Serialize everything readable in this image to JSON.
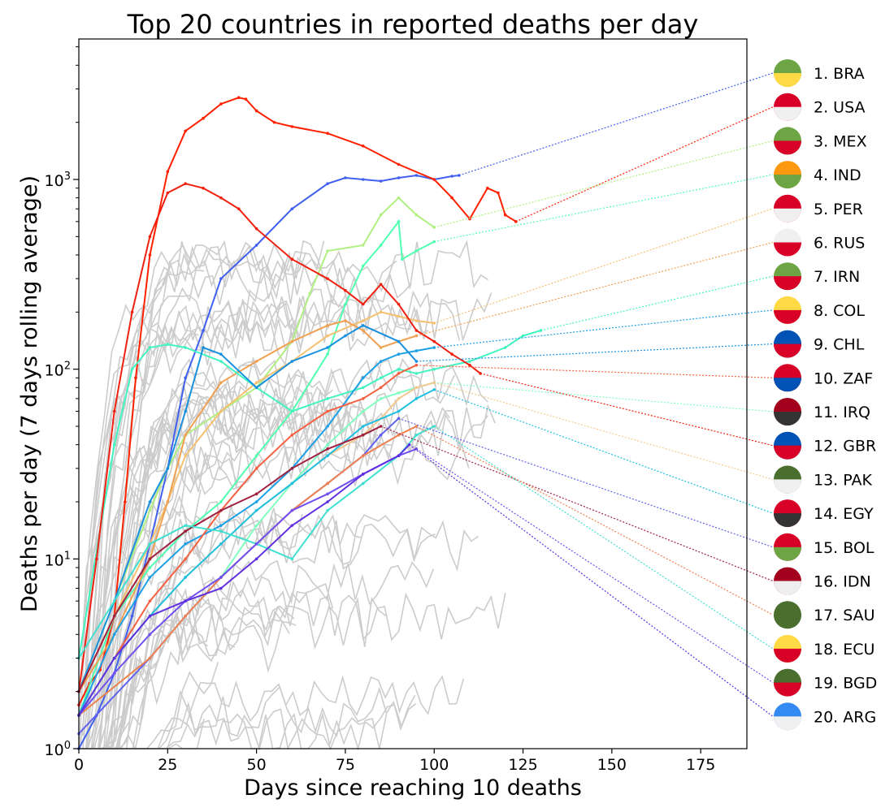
{
  "chart_data": {
    "type": "line",
    "title": "Top 20 countries in reported deaths per day",
    "xlabel": "Days since reaching 10 deaths",
    "ylabel": "Deaths per day (7 days rolling average)",
    "xlim": [
      0,
      188
    ],
    "ylim": [
      1,
      5500
    ],
    "yscale": "log",
    "grid": false,
    "legend_position": "right",
    "x_ticks": [
      {
        "value": 0,
        "label": "0"
      },
      {
        "value": 25,
        "label": "25"
      },
      {
        "value": 50,
        "label": "50"
      },
      {
        "value": 75,
        "label": "75"
      },
      {
        "value": 100,
        "label": "100"
      },
      {
        "value": 125,
        "label": "125"
      },
      {
        "value": 150,
        "label": "150"
      },
      {
        "value": 175,
        "label": "175"
      }
    ],
    "y_ticks": [
      {
        "value": 1,
        "base": "10",
        "exp": "0"
      },
      {
        "value": 10,
        "base": "10",
        "exp": "1"
      },
      {
        "value": 100,
        "base": "10",
        "exp": "2"
      },
      {
        "value": 1000,
        "base": "10",
        "exp": "3"
      }
    ],
    "series": [
      {
        "name": "1. BRA",
        "flag": "flag-brazil-icon",
        "color": "#4060f0",
        "x": [
          0,
          5,
          10,
          15,
          20,
          25,
          30,
          35,
          40,
          50,
          60,
          70,
          75,
          80,
          85,
          90,
          95,
          100,
          105,
          107
        ],
        "y": [
          1,
          1.5,
          2.5,
          5,
          12,
          30,
          90,
          160,
          300,
          450,
          700,
          950,
          1020,
          1000,
          980,
          1020,
          1050,
          1000,
          1040,
          1050
        ]
      },
      {
        "name": "2. USA",
        "flag": "flag-usa-icon",
        "color": "#ff2000",
        "x": [
          0,
          3,
          6,
          10,
          13,
          16,
          20,
          25,
          30,
          35,
          40,
          45,
          47,
          50,
          55,
          60,
          70,
          80,
          90,
          100,
          105,
          110,
          115,
          118,
          120,
          123
        ],
        "y": [
          1.7,
          2.2,
          2.6,
          5,
          20,
          90,
          400,
          1100,
          1800,
          2100,
          2500,
          2700,
          2650,
          2300,
          2000,
          1900,
          1750,
          1500,
          1200,
          1000,
          800,
          620,
          900,
          850,
          650,
          600
        ]
      },
      {
        "name": "3. MEX",
        "flag": "flag-mexico-icon",
        "color": "#b0f080",
        "x": [
          0,
          10,
          20,
          25,
          30,
          40,
          50,
          60,
          65,
          70,
          80,
          85,
          90,
          95,
          100
        ],
        "y": [
          2,
          6,
          18,
          30,
          45,
          60,
          80,
          140,
          250,
          420,
          450,
          650,
          800,
          650,
          560
        ]
      },
      {
        "name": "4. IND",
        "flag": "flag-india-icon",
        "color": "#50ffb0",
        "x": [
          0,
          10,
          20,
          30,
          40,
          50,
          60,
          70,
          75,
          80,
          85,
          90,
          91,
          95,
          100
        ],
        "y": [
          1.5,
          5,
          9,
          14,
          20,
          35,
          60,
          120,
          220,
          350,
          450,
          600,
          380,
          420,
          470
        ]
      },
      {
        "name": "5. PER",
        "flag": "flag-peru-icon",
        "color": "#f5c070",
        "x": [
          0,
          10,
          20,
          25,
          30,
          40,
          50,
          60,
          70,
          80,
          85,
          90,
          95,
          100
        ],
        "y": [
          2,
          5,
          12,
          20,
          35,
          60,
          85,
          110,
          150,
          180,
          200,
          190,
          180,
          175
        ]
      },
      {
        "name": "6. RUS",
        "flag": "flag-russia-icon",
        "color": "#f0a050",
        "x": [
          0,
          10,
          20,
          25,
          30,
          40,
          50,
          60,
          70,
          75,
          80,
          85,
          90,
          95
        ],
        "y": [
          2,
          4,
          10,
          20,
          45,
          85,
          110,
          140,
          170,
          180,
          160,
          130,
          140,
          150
        ]
      },
      {
        "name": "7. IRN",
        "flag": "flag-iran-icon",
        "color": "#40f5c0",
        "x": [
          0,
          10,
          15,
          20,
          25,
          30,
          40,
          50,
          60,
          70,
          80,
          85,
          90,
          95,
          100,
          110,
          120,
          125,
          130
        ],
        "y": [
          3,
          40,
          100,
          130,
          135,
          130,
          110,
          80,
          60,
          70,
          80,
          90,
          100,
          95,
          100,
          110,
          130,
          150,
          160
        ]
      },
      {
        "name": "8. COL",
        "flag": "flag-colombia-icon",
        "color": "#1ca0e8",
        "x": [
          0,
          10,
          20,
          30,
          40,
          50,
          60,
          70,
          80,
          85,
          90,
          95,
          100
        ],
        "y": [
          1.5,
          4,
          8,
          12,
          15,
          20,
          30,
          50,
          90,
          110,
          120,
          125,
          130
        ]
      },
      {
        "name": "9. CHL",
        "flag": "flag-chile-icon",
        "color": "#1890e0",
        "x": [
          0,
          10,
          20,
          25,
          30,
          35,
          40,
          50,
          60,
          70,
          75,
          80,
          90,
          95
        ],
        "y": [
          2,
          6,
          20,
          30,
          60,
          130,
          120,
          80,
          110,
          130,
          150,
          170,
          140,
          110
        ]
      },
      {
        "name": "10. ZAF",
        "flag": "flag-south-africa-icon",
        "color": "#f56040",
        "x": [
          0,
          10,
          20,
          30,
          40,
          50,
          60,
          70,
          80,
          85,
          90,
          95
        ],
        "y": [
          1.5,
          3,
          6,
          10,
          18,
          30,
          45,
          60,
          70,
          80,
          95,
          105
        ]
      },
      {
        "name": "11. IRQ",
        "flag": "flag-iraq-icon",
        "color": "#80ffc0",
        "x": [
          0,
          20,
          30,
          40,
          50,
          60,
          70,
          80,
          85,
          90,
          95,
          100
        ],
        "y": [
          1.5,
          3,
          5,
          8,
          15,
          25,
          40,
          60,
          70,
          75,
          80,
          85
        ]
      },
      {
        "name": "12. GBR",
        "flag": "flag-uk-icon",
        "color": "#f02010",
        "x": [
          0,
          5,
          10,
          15,
          20,
          25,
          30,
          35,
          40,
          45,
          50,
          60,
          70,
          75,
          80,
          85,
          90,
          95,
          100,
          105,
          110,
          113
        ],
        "y": [
          2,
          10,
          60,
          200,
          500,
          850,
          950,
          900,
          800,
          700,
          550,
          380,
          300,
          260,
          220,
          280,
          220,
          160,
          140,
          120,
          105,
          95
        ]
      },
      {
        "name": "13. PAK",
        "flag": "flag-pakistan-icon",
        "color": "#f5c890",
        "x": [
          0,
          10,
          20,
          30,
          40,
          50,
          60,
          70,
          80,
          85,
          90,
          95,
          100
        ],
        "y": [
          1.5,
          3,
          5,
          8,
          12,
          18,
          25,
          35,
          45,
          55,
          70,
          80,
          85
        ]
      },
      {
        "name": "14. EGY",
        "flag": "flag-egypt-icon",
        "color": "#20c0e0",
        "x": [
          0,
          10,
          20,
          30,
          40,
          50,
          60,
          70,
          80,
          90,
          95,
          100
        ],
        "y": [
          1.5,
          3,
          5,
          8,
          12,
          18,
          25,
          35,
          50,
          60,
          70,
          78
        ]
      },
      {
        "name": "15. BOL",
        "flag": "flag-bolivia-icon",
        "color": "#6060f0",
        "x": [
          0,
          20,
          30,
          40,
          50,
          60,
          70,
          80,
          85,
          90
        ],
        "y": [
          1.2,
          3,
          5,
          8,
          12,
          18,
          25,
          35,
          45,
          55
        ]
      },
      {
        "name": "16. IDN",
        "flag": "flag-indonesia-icon",
        "color": "#a02040",
        "x": [
          0,
          10,
          20,
          30,
          40,
          50,
          60,
          70,
          80,
          85
        ],
        "y": [
          2,
          5,
          10,
          14,
          18,
          22,
          30,
          38,
          45,
          50
        ]
      },
      {
        "name": "17. SAU",
        "flag": "flag-saudi-arabia-icon",
        "color": "#f08050",
        "x": [
          0,
          20,
          30,
          40,
          50,
          60,
          70,
          80,
          90,
          95
        ],
        "y": [
          1.5,
          3,
          5,
          8,
          12,
          18,
          25,
          35,
          45,
          50
        ]
      },
      {
        "name": "18. ECU",
        "flag": "flag-ecuador-icon",
        "color": "#40e0d0",
        "x": [
          0,
          10,
          20,
          30,
          40,
          50,
          60,
          70,
          80,
          90,
          95,
          100
        ],
        "y": [
          3,
          6,
          12,
          15,
          14,
          12,
          10,
          18,
          25,
          35,
          45,
          50
        ]
      },
      {
        "name": "19. BGD",
        "flag": "flag-bangladesh-icon",
        "color": "#7050f0",
        "x": [
          0,
          10,
          20,
          30,
          40,
          50,
          60,
          70,
          80,
          90,
          95
        ],
        "y": [
          1.5,
          2.5,
          4,
          6,
          8,
          12,
          18,
          22,
          28,
          35,
          38
        ]
      },
      {
        "name": "20. ARG",
        "flag": "flag-argentina-icon",
        "color": "#6030e0",
        "x": [
          0,
          10,
          20,
          30,
          40,
          50,
          60,
          70,
          80,
          90,
          93
        ],
        "y": [
          1.5,
          3,
          5,
          6,
          7,
          10,
          15,
          20,
          28,
          35,
          40
        ]
      }
    ]
  }
}
